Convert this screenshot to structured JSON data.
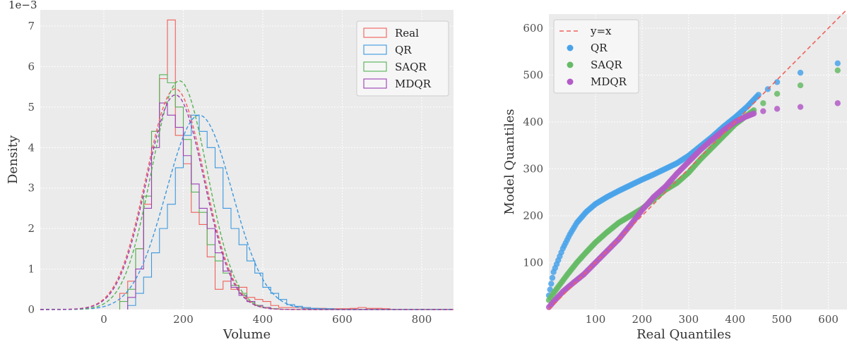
{
  "chart_data": [
    {
      "type": "histogram",
      "xlabel": "Volume",
      "ylabel": "Density",
      "offset_text": "1e−3",
      "xlim": [
        -160,
        880
      ],
      "ylim": [
        0,
        7.4
      ],
      "xticks": [
        0,
        200,
        400,
        600,
        800
      ],
      "yticks": [
        0,
        1,
        2,
        3,
        4,
        5,
        6,
        7
      ],
      "bin_width": 20,
      "grid": true,
      "legend": "top-right",
      "series": [
        {
          "name": "Real",
          "color": "#f0605a",
          "bins_start": 40,
          "density": [
            0.4,
            0.7,
            1.5,
            2.6,
            4.4,
            5.7,
            7.15,
            4.3,
            3.6,
            2.4,
            2.1,
            1.3,
            0.5,
            0.7,
            0.5,
            0.55,
            0.3,
            0.25,
            0.2,
            0.1,
            0.05,
            0.05,
            0.05,
            0.03,
            0.03,
            0.03,
            0.02,
            0.02,
            0.02,
            0.03,
            0.05,
            0.03,
            0.03,
            0.02
          ],
          "fit_mean": 180,
          "fit_sd": 73,
          "fit_peak": 5.45
        },
        {
          "name": "QR",
          "color": "#3a98e0",
          "bins_start": 60,
          "density": [
            0.1,
            0.4,
            0.8,
            1.4,
            2.0,
            2.6,
            3.5,
            4.3,
            4.8,
            4.4,
            4.0,
            3.5,
            2.5,
            2.0,
            1.6,
            1.2,
            0.9,
            0.55,
            0.4,
            0.25,
            0.12,
            0.08,
            0.05,
            0.03,
            0.02,
            0.02
          ],
          "fit_mean": 240,
          "fit_sd": 83,
          "fit_peak": 4.8
        },
        {
          "name": "SAQR",
          "color": "#55b255",
          "bins_start": 40,
          "density": [
            0.2,
            0.5,
            1.5,
            2.8,
            4.4,
            5.8,
            5.6,
            5.0,
            4.2,
            2.9,
            2.4,
            1.6,
            1.2,
            0.9,
            0.6,
            0.4,
            0.2,
            0.1,
            0.05,
            0.02
          ],
          "fit_mean": 190,
          "fit_sd": 70,
          "fit_peak": 5.65
        },
        {
          "name": "MDQR",
          "color": "#9a3fb5",
          "bins_start": 60,
          "density": [
            0.3,
            1.0,
            2.5,
            4.0,
            5.1,
            4.8,
            4.5,
            3.8,
            3.1,
            2.5,
            2.0,
            1.4,
            0.95,
            0.55,
            0.35,
            0.2,
            0.1,
            0.05
          ],
          "fit_mean": 180,
          "fit_sd": 72,
          "fit_peak": 5.3
        }
      ]
    },
    {
      "type": "scatter",
      "xlabel": "Real Quantiles",
      "ylabel": "Model Quantiles",
      "xlim": [
        0,
        640
      ],
      "ylim": [
        0,
        630
      ],
      "xticks": [
        100,
        200,
        300,
        400,
        500,
        600
      ],
      "yticks": [
        100,
        200,
        300,
        400,
        500,
        600
      ],
      "grid": true,
      "legend": "top-left",
      "reference_line": {
        "name": "y=x",
        "color": "#f0605a"
      },
      "series": [
        {
          "name": "QR",
          "color": "#4aa3ea",
          "points": [
            [
              0,
              30
            ],
            [
              5,
              55
            ],
            [
              10,
              80
            ],
            [
              20,
              105
            ],
            [
              30,
              130
            ],
            [
              45,
              160
            ],
            [
              60,
              185
            ],
            [
              80,
              208
            ],
            [
              100,
              225
            ],
            [
              125,
              240
            ],
            [
              150,
              253
            ],
            [
              175,
              265
            ],
            [
              200,
              277
            ],
            [
              225,
              288
            ],
            [
              250,
              300
            ],
            [
              275,
              312
            ],
            [
              300,
              328
            ],
            [
              325,
              348
            ],
            [
              350,
              368
            ],
            [
              375,
              390
            ],
            [
              400,
              410
            ],
            [
              425,
              432
            ],
            [
              450,
              458
            ],
            [
              470,
              470
            ],
            [
              490,
              485
            ],
            [
              540,
              505
            ],
            [
              620,
              525
            ]
          ]
        },
        {
          "name": "SAQR",
          "color": "#66bb66",
          "points": [
            [
              0,
              20
            ],
            [
              10,
              35
            ],
            [
              25,
              55
            ],
            [
              40,
              75
            ],
            [
              60,
              100
            ],
            [
              80,
              122
            ],
            [
              100,
              143
            ],
            [
              125,
              165
            ],
            [
              150,
              185
            ],
            [
              175,
              200
            ],
            [
              200,
              215
            ],
            [
              225,
              235
            ],
            [
              250,
              255
            ],
            [
              275,
              270
            ],
            [
              300,
              292
            ],
            [
              325,
              320
            ],
            [
              350,
              345
            ],
            [
              375,
              370
            ],
            [
              400,
              395
            ],
            [
              420,
              410
            ],
            [
              440,
              425
            ],
            [
              460,
              440
            ],
            [
              490,
              460
            ],
            [
              540,
              478
            ],
            [
              620,
              510
            ]
          ]
        },
        {
          "name": "MDQR",
          "color": "#b35cc7",
          "points": [
            [
              0,
              5
            ],
            [
              15,
              22
            ],
            [
              30,
              38
            ],
            [
              50,
              55
            ],
            [
              75,
              75
            ],
            [
              100,
              100
            ],
            [
              125,
              125
            ],
            [
              150,
              150
            ],
            [
              175,
              180
            ],
            [
              200,
              212
            ],
            [
              225,
              240
            ],
            [
              250,
              262
            ],
            [
              275,
              290
            ],
            [
              300,
              315
            ],
            [
              325,
              340
            ],
            [
              350,
              362
            ],
            [
              375,
              382
            ],
            [
              400,
              400
            ],
            [
              420,
              410
            ],
            [
              440,
              418
            ],
            [
              460,
              423
            ],
            [
              490,
              428
            ],
            [
              540,
              432
            ],
            [
              620,
              440
            ]
          ]
        }
      ]
    }
  ]
}
